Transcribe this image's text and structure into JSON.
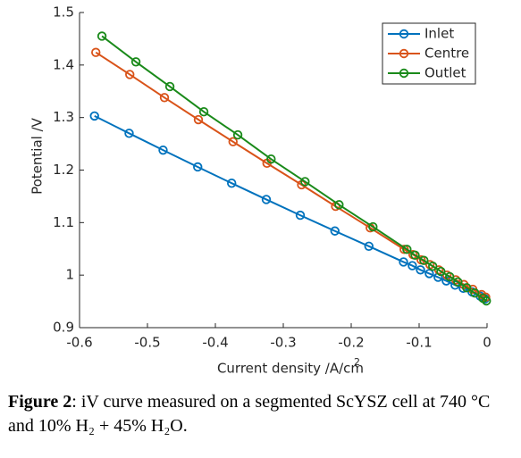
{
  "chart_data": {
    "type": "line",
    "xlabel": "Current density /A/cm",
    "xlabel_superscript": "2",
    "ylabel": "Potential /V",
    "xlim": [
      -0.6,
      0
    ],
    "xticks": [
      -0.6,
      -0.5,
      -0.4,
      -0.3,
      -0.2,
      -0.1,
      0
    ],
    "ylim": [
      0.9,
      1.5
    ],
    "yticks": [
      0.9,
      1,
      1.1,
      1.2,
      1.3,
      1.4,
      1.5
    ],
    "grid": false,
    "legend": "upper right",
    "series": [
      {
        "name": "Inlet",
        "color": "#0072bd",
        "x": [
          -0.578,
          -0.527,
          -0.477,
          -0.426,
          -0.376,
          -0.325,
          -0.275,
          -0.224,
          -0.174,
          -0.123,
          -0.11,
          -0.098,
          -0.085,
          -0.072,
          -0.06,
          -0.047,
          -0.035,
          -0.022,
          -0.01,
          -0.003
        ],
        "values": [
          1.303,
          1.27,
          1.238,
          1.206,
          1.175,
          1.144,
          1.114,
          1.084,
          1.055,
          1.025,
          1.018,
          1.01,
          1.003,
          0.996,
          0.989,
          0.981,
          0.975,
          0.968,
          0.96,
          0.955
        ]
      },
      {
        "name": "Centre",
        "color": "#d95319",
        "x": [
          -0.576,
          -0.526,
          -0.475,
          -0.425,
          -0.374,
          -0.324,
          -0.273,
          -0.223,
          -0.172,
          -0.122,
          -0.109,
          -0.097,
          -0.084,
          -0.071,
          -0.059,
          -0.046,
          -0.034,
          -0.021,
          -0.008,
          -0.002
        ],
        "values": [
          1.424,
          1.382,
          1.338,
          1.296,
          1.254,
          1.213,
          1.172,
          1.131,
          1.09,
          1.049,
          1.039,
          1.029,
          1.02,
          1.01,
          1.0,
          0.991,
          0.982,
          0.973,
          0.963,
          0.958
        ]
      },
      {
        "name": "Outlet",
        "color": "#1a8a1a",
        "x": [
          -0.567,
          -0.517,
          -0.467,
          -0.417,
          -0.367,
          -0.318,
          -0.268,
          -0.218,
          -0.168,
          -0.118,
          -0.106,
          -0.093,
          -0.08,
          -0.068,
          -0.055,
          -0.043,
          -0.03,
          -0.018,
          -0.006,
          -0.001
        ],
        "values": [
          1.455,
          1.406,
          1.359,
          1.311,
          1.267,
          1.221,
          1.178,
          1.134,
          1.092,
          1.049,
          1.038,
          1.028,
          1.017,
          1.007,
          0.997,
          0.987,
          0.976,
          0.966,
          0.956,
          0.951
        ]
      }
    ]
  },
  "caption": {
    "label": "Figure 2",
    "text": ": iV curve measured on a segmented ScYSZ cell at 740 °C and 10% H₂ + 45% H₂O."
  }
}
